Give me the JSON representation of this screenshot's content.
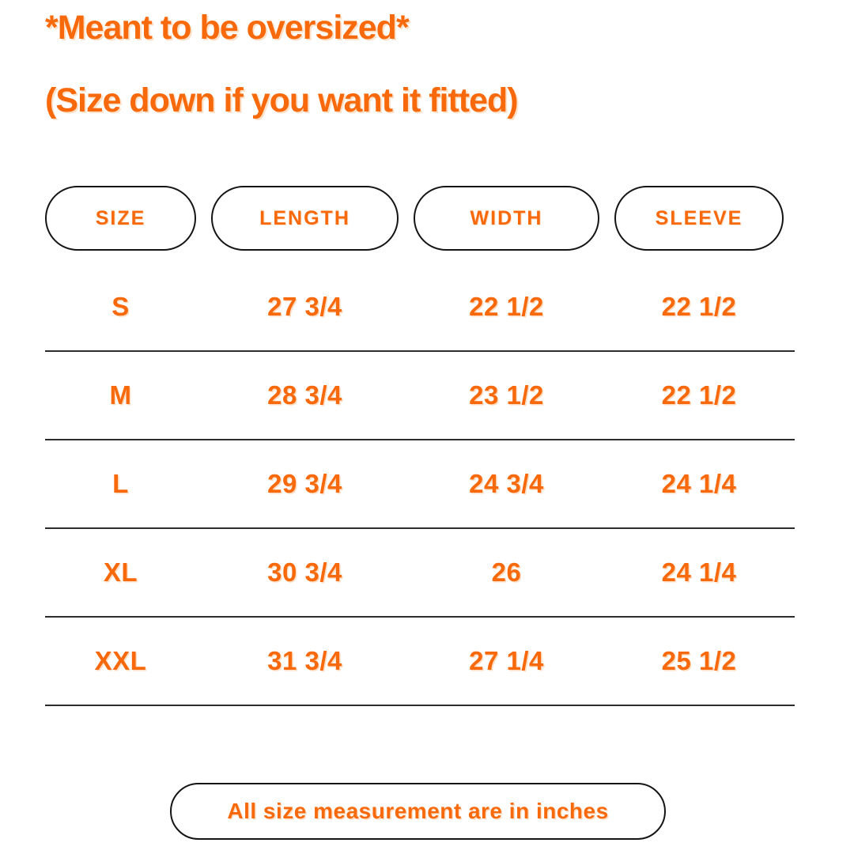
{
  "colors": {
    "accent_orange": "#F8690B",
    "pill_border": "#141414",
    "row_separator": "#2B2B2B",
    "background": "#FFFFFF"
  },
  "chart_data": {
    "type": "table",
    "title": "*Meant to be oversized*",
    "subtitle": "(Size down if you want it fitted)",
    "columns": [
      "SIZE",
      "LENGTH",
      "WIDTH",
      "SLEEVE"
    ],
    "rows": [
      [
        "S",
        "27 3/4",
        "22 1/2",
        "22 1/2"
      ],
      [
        "M",
        "28 3/4",
        "23 1/2",
        "22 1/2"
      ],
      [
        "L",
        "29 3/4",
        "24 3/4",
        "24 1/4"
      ],
      [
        "XL",
        "30 3/4",
        "26",
        "24 1/4"
      ],
      [
        "XXL",
        "31 3/4",
        "27 1/4",
        "25 1/2"
      ]
    ],
    "note": "All size measurement are in inches",
    "layout": {
      "header_style": "outlined-pill-capsules",
      "row_separators": "horizontal-lines",
      "grid": "rows-only"
    }
  }
}
